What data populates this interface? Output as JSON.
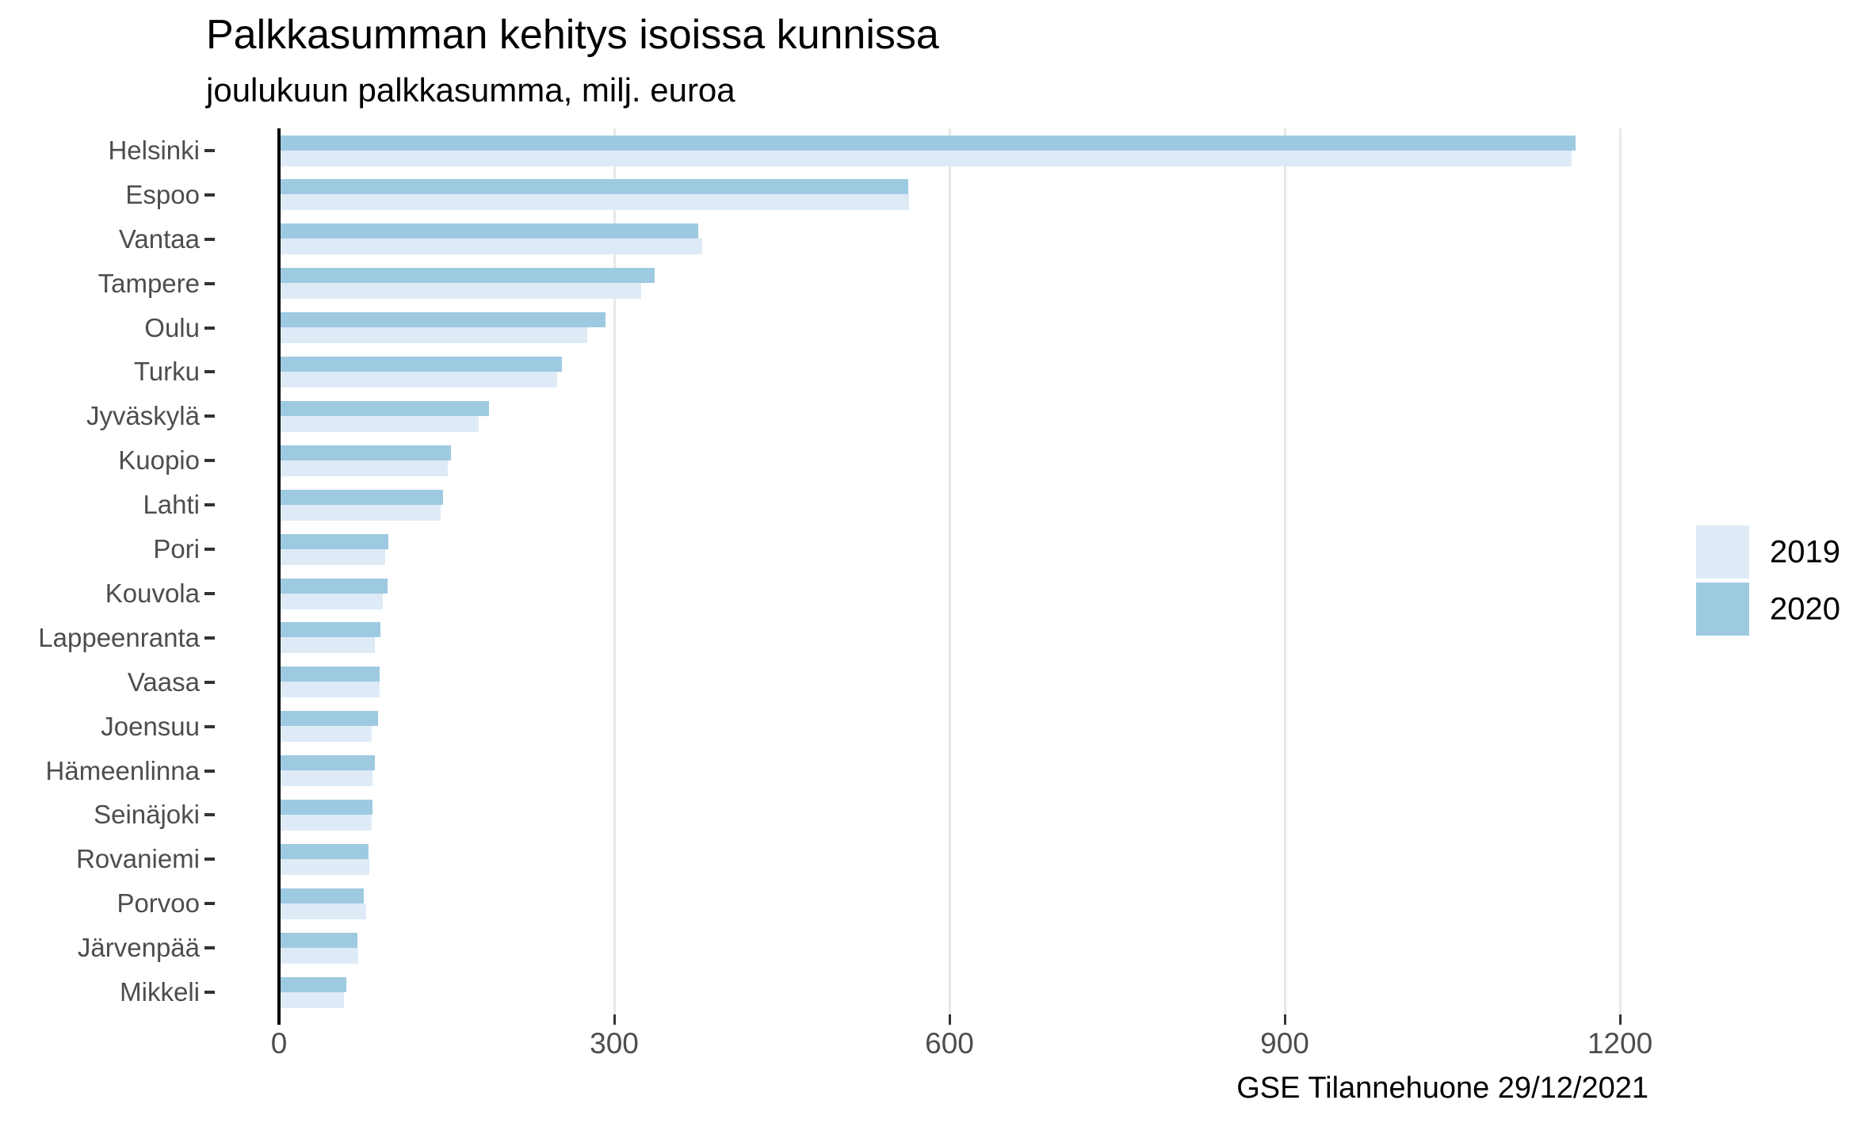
{
  "title": "Palkkasumman kehitys isoissa kunnissa",
  "subtitle": "joulukuun palkkasumma, milj. euroa",
  "caption": "GSE Tilannehuone 29/12/2021",
  "colors": {
    "series_2019": "#DEEBF7",
    "series_2020": "#9ECAE1",
    "gridline": "#E8E8E8",
    "axis_line": "#000000",
    "axis_text": "#4D4D4D",
    "tick_mark": "#333333"
  },
  "legend": {
    "position": "right",
    "items": [
      {
        "label": "2019",
        "color": "#DEEBF7"
      },
      {
        "label": "2020",
        "color": "#9ECAE1"
      }
    ]
  },
  "chart_data": {
    "type": "bar",
    "orientation": "horizontal",
    "title": "Palkkasumman kehitys isoissa kunnissa",
    "subtitle": "joulukuun palkkasumma, milj. euroa",
    "caption": "GSE Tilannehuone 29/12/2021",
    "xlabel": "",
    "ylabel": "",
    "xlim": [
      0,
      1275
    ],
    "x_ticks": [
      0,
      300,
      600,
      900,
      1200
    ],
    "grid": "vertical-major-only",
    "legend_position": "right",
    "unit": "milj. euroa",
    "categories": [
      "Helsinki",
      "Espoo",
      "Vantaa",
      "Tampere",
      "Oulu",
      "Turku",
      "Jyväskylä",
      "Kuopio",
      "Lahti",
      "Pori",
      "Kouvola",
      "Lappeenranta",
      "Vaasa",
      "Joensuu",
      "Hämeenlinna",
      "Seinäjoki",
      "Rovaniemi",
      "Porvoo",
      "Järvenpää",
      "Mikkeli"
    ],
    "series": [
      {
        "name": "2019",
        "color": "#DEEBF7",
        "values": [
          1157,
          564,
          379,
          324,
          276,
          249,
          179,
          151,
          145,
          95,
          93,
          86,
          90,
          83,
          84,
          83,
          81,
          78,
          71,
          58
        ]
      },
      {
        "name": "2020",
        "color": "#9ECAE1",
        "values": [
          1160,
          563,
          375,
          336,
          292,
          253,
          188,
          154,
          147,
          98,
          97,
          91,
          90,
          89,
          86,
          84,
          80,
          76,
          70,
          60
        ]
      }
    ]
  }
}
